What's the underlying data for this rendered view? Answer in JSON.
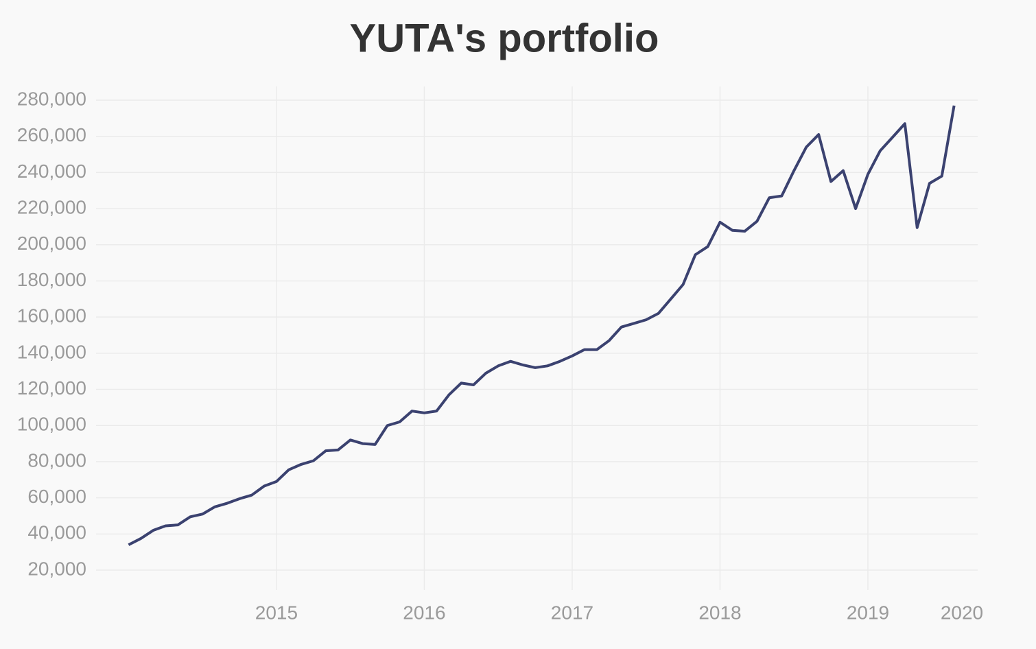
{
  "chart_data": {
    "type": "line",
    "title": "YUTA's portfolio",
    "x": [
      2014,
      2014.083,
      2014.167,
      2014.25,
      2014.333,
      2014.417,
      2014.5,
      2014.583,
      2014.667,
      2014.75,
      2014.833,
      2014.917,
      2015,
      2015.083,
      2015.167,
      2015.25,
      2015.333,
      2015.417,
      2015.5,
      2015.583,
      2015.667,
      2015.75,
      2015.833,
      2015.917,
      2016,
      2016.083,
      2016.167,
      2016.25,
      2016.333,
      2016.417,
      2016.5,
      2016.583,
      2016.667,
      2016.75,
      2016.833,
      2016.917,
      2017,
      2017.083,
      2017.167,
      2017.25,
      2017.333,
      2017.417,
      2017.5,
      2017.583,
      2017.667,
      2017.75,
      2017.833,
      2017.917,
      2018,
      2018.083,
      2018.167,
      2018.25,
      2018.333,
      2018.417,
      2018.5,
      2018.583,
      2018.667,
      2018.75,
      2018.833,
      2018.917,
      2019,
      2019.083,
      2019.167,
      2019.25,
      2019.333,
      2019.417,
      2019.5,
      2019.583
    ],
    "series": [
      {
        "name": "portfolio",
        "color": "#3b4270",
        "values": [
          34000,
          37500,
          42000,
          44500,
          45000,
          49500,
          51000,
          55000,
          57000,
          59500,
          61500,
          66500,
          69000,
          75500,
          78500,
          80500,
          86000,
          86500,
          92000,
          90000,
          89500,
          100000,
          102000,
          108000,
          107000,
          108000,
          117000,
          123500,
          122500,
          129000,
          133000,
          135500,
          133500,
          132000,
          133000,
          135500,
          138500,
          142000,
          142000,
          147000,
          154500,
          156500,
          158500,
          162000,
          170000,
          178000,
          194500,
          199000,
          212500,
          208000,
          207500,
          213000,
          226000,
          227000,
          241000,
          254000,
          261000,
          235000,
          241000,
          220000,
          239000,
          252000,
          259500,
          267000,
          209500,
          234000,
          238000,
          277000
        ]
      }
    ],
    "xlim": [
      2013.78,
      2020
    ],
    "xticks": [
      2015,
      2016,
      2017,
      2018,
      2019,
      2020
    ],
    "ylim": [
      9000,
      287600
    ],
    "yticks": [
      {
        "value": 20000,
        "label": "20,000"
      },
      {
        "value": 40000,
        "label": "40,000"
      },
      {
        "value": 60000,
        "label": "60,000"
      },
      {
        "value": 80000,
        "label": "80,000"
      },
      {
        "value": 100000,
        "label": "100,000"
      },
      {
        "value": 120000,
        "label": "120,000"
      },
      {
        "value": 140000,
        "label": "140,000"
      },
      {
        "value": 160000,
        "label": "160,000"
      },
      {
        "value": 180000,
        "label": "180,000"
      },
      {
        "value": 200000,
        "label": "200,000"
      },
      {
        "value": 220000,
        "label": "220,000"
      },
      {
        "value": 240000,
        "label": "240,000"
      },
      {
        "value": 260000,
        "label": "260,000"
      },
      {
        "value": 280000,
        "label": "280,000"
      }
    ],
    "grid": true
  }
}
